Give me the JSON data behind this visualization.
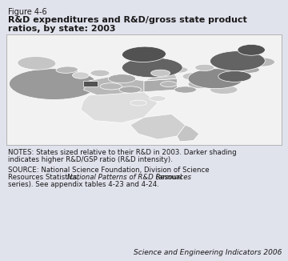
{
  "figure_label": "Figure 4-6",
  "title_line1": "R&D expenditures and R&D/gross state product",
  "title_line2": "ratios, by state: 2003",
  "notes_line1": "NOTES: States sized relative to their R&D in 2003. Darker shading",
  "notes_line2": "indicates higher R&D/GSP ratio (R&D intensity).",
  "source_line1": "SOURCE: National Science Foundation, Division of Science",
  "source_line2a": "Resources Statistics, ",
  "source_line2b": "National Patterns of R&D Resources",
  "source_line2c": " (annual",
  "source_line3": "series). See appendix tables 4-23 and 4-24.",
  "footer_text": "Science and Engineering Indicators 2006",
  "bg_color": "#e0e2ec",
  "map_bg": "#f2f2f2",
  "text_color": "#1a1a1a",
  "c_dark1": "#525252",
  "c_dark2": "#636363",
  "c_dark3": "#737373",
  "c_med1": "#8a8a8a",
  "c_med2": "#9a9a9a",
  "c_med3": "#ababab",
  "c_light1": "#b8b8b8",
  "c_light2": "#c5c5c5",
  "c_light3": "#d0d0d0",
  "c_vlight": "#dedede",
  "c_white": "#eeeeee"
}
